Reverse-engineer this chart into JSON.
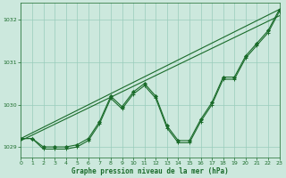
{
  "background_color": "#cce8dd",
  "grid_color": "#99ccbb",
  "line_color": "#1a6b2a",
  "xlabel": "Graphe pression niveau de la mer (hPa)",
  "xlim": [
    0,
    23
  ],
  "ylim": [
    1028.75,
    1032.4
  ],
  "yticks": [
    1029,
    1030,
    1031,
    1032
  ],
  "xticks": [
    0,
    1,
    2,
    3,
    4,
    5,
    6,
    7,
    8,
    9,
    10,
    11,
    12,
    13,
    14,
    15,
    16,
    17,
    18,
    19,
    20,
    21,
    22,
    23
  ],
  "line_trend": {
    "x": [
      0,
      23
    ],
    "y": [
      1029.2,
      1032.25
    ]
  },
  "line_trend2": {
    "x": [
      0,
      23
    ],
    "y": [
      1029.15,
      1032.1
    ]
  },
  "line_main": {
    "x": [
      0,
      1,
      2,
      3,
      4,
      5,
      6,
      7,
      8,
      9,
      10,
      11,
      12,
      13,
      14,
      15,
      16,
      17,
      18,
      19,
      20,
      21,
      22,
      23
    ],
    "y": [
      1029.2,
      1029.2,
      1029.0,
      1029.0,
      1029.0,
      1029.05,
      1029.2,
      1029.6,
      1030.2,
      1029.95,
      1030.3,
      1030.5,
      1030.2,
      1029.5,
      1029.15,
      1029.15,
      1029.65,
      1030.05,
      1030.65,
      1030.65,
      1031.15,
      1031.45,
      1031.75,
      1032.25
    ]
  },
  "line_secondary": {
    "x": [
      0,
      1,
      2,
      3,
      4,
      5,
      6,
      7,
      8,
      9,
      10,
      11,
      12,
      13,
      14,
      15,
      16,
      17,
      18,
      19,
      20,
      21,
      22,
      23
    ],
    "y": [
      1029.2,
      1029.2,
      1028.95,
      1028.95,
      1028.95,
      1029.0,
      1029.15,
      1029.55,
      1030.15,
      1029.9,
      1030.25,
      1030.45,
      1030.15,
      1029.45,
      1029.1,
      1029.1,
      1029.6,
      1030.0,
      1030.6,
      1030.6,
      1031.1,
      1031.4,
      1031.7,
      1032.2
    ]
  }
}
